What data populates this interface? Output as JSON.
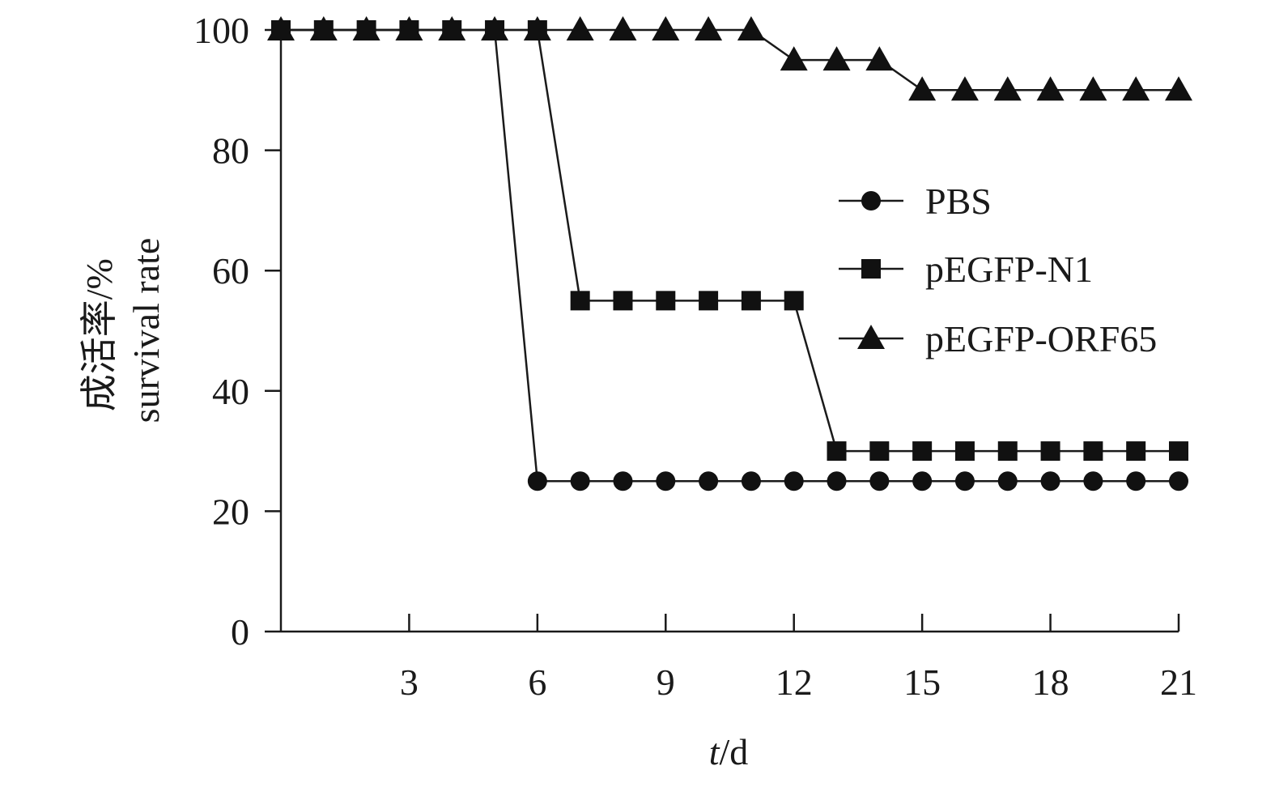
{
  "chart_data": {
    "type": "line",
    "xlabel_var": "t",
    "xlabel_unit": "/d",
    "ylabel_cn": "成活率/%",
    "ylabel_en": "survival rate",
    "xlim": [
      0,
      21
    ],
    "ylim": [
      0,
      100
    ],
    "xticks": [
      3,
      6,
      9,
      12,
      15,
      18,
      21
    ],
    "yticks": [
      0,
      20,
      40,
      60,
      80,
      100
    ],
    "grid": false,
    "legend_position": "right",
    "series": [
      {
        "name": "PBS",
        "marker": "circle",
        "x": [
          0,
          1,
          2,
          3,
          4,
          5,
          6,
          7,
          8,
          9,
          10,
          11,
          12,
          13,
          14,
          15,
          16,
          17,
          18,
          19,
          20,
          21
        ],
        "y": [
          100,
          100,
          100,
          100,
          100,
          100,
          25,
          25,
          25,
          25,
          25,
          25,
          25,
          25,
          25,
          25,
          25,
          25,
          25,
          25,
          25,
          25
        ]
      },
      {
        "name": "pEGFP-N1",
        "marker": "square",
        "x": [
          0,
          1,
          2,
          3,
          4,
          5,
          6,
          7,
          8,
          9,
          10,
          11,
          12,
          13,
          14,
          15,
          16,
          17,
          18,
          19,
          20,
          21
        ],
        "y": [
          100,
          100,
          100,
          100,
          100,
          100,
          100,
          55,
          55,
          55,
          55,
          55,
          55,
          30,
          30,
          30,
          30,
          30,
          30,
          30,
          30,
          30
        ]
      },
      {
        "name": "pEGFP-ORF65",
        "marker": "triangle",
        "x": [
          0,
          1,
          2,
          3,
          4,
          5,
          6,
          7,
          8,
          9,
          10,
          11,
          12,
          13,
          14,
          15,
          16,
          17,
          18,
          19,
          20,
          21
        ],
        "y": [
          100,
          100,
          100,
          100,
          100,
          100,
          100,
          100,
          100,
          100,
          100,
          100,
          95,
          95,
          95,
          90,
          90,
          90,
          90,
          90,
          90,
          90
        ]
      }
    ]
  }
}
